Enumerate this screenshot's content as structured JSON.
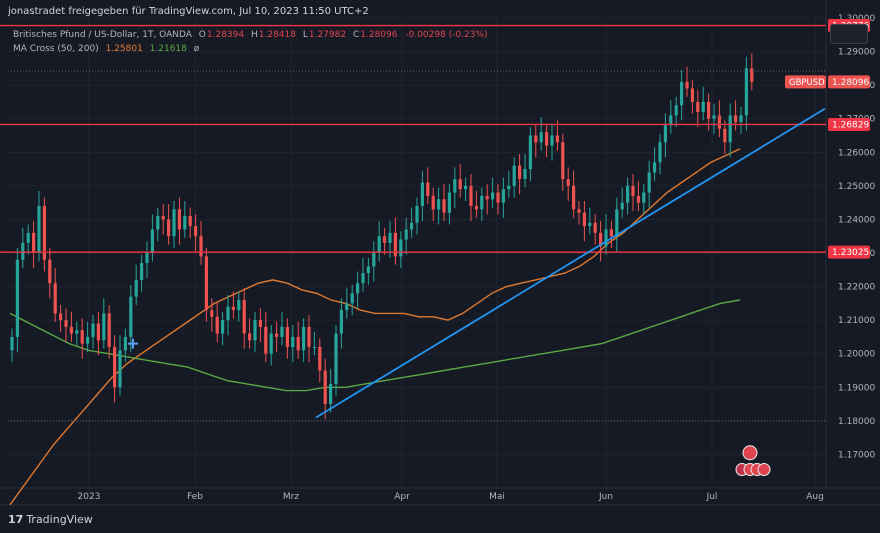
{
  "header": {
    "author": "jonastradet freigegeben für TradingView.com, Jul 10, 2023 11:50 UTC+2"
  },
  "legend": {
    "symbol": "Britisches Pfund / US-Dollar, 1T, OANDA",
    "open_label": "O",
    "open": "1.28394",
    "high_label": "H",
    "high": "1.28418",
    "low_label": "L",
    "low": "1.27982",
    "close_label": "C",
    "close": "1.28096",
    "change": "-0.00298 (-0.23%)",
    "ma_label": "MA Cross (50, 200)",
    "ma_fast": "1.25801",
    "ma_slow": "1.21618",
    "ma_glyph": "ø"
  },
  "footer": {
    "brand": "TradingView",
    "logo": "17"
  },
  "colors": {
    "background": "#161a25",
    "up": "#26a69a",
    "down": "#ef5350",
    "horizontal_line": "#f23645",
    "trendline": "#2196f3",
    "ma_fast": "#e07a2e",
    "ma_slow": "#5aa846"
  },
  "chart_data": {
    "type": "candlestick",
    "symbol": "GBPUSD",
    "y_ticks": [
      1.17,
      1.18,
      1.19,
      1.2,
      1.21,
      1.22,
      1.23,
      1.24,
      1.25,
      1.26,
      1.27,
      1.28,
      1.29,
      1.3
    ],
    "ylim": [
      1.16,
      1.3
    ],
    "x_tick_labels": [
      "2023",
      "Feb",
      "Mrz",
      "Apr",
      "Mai",
      "Jun",
      "Jul",
      "Aug"
    ],
    "price_tag_label": "GBPUSD",
    "last_price": 1.28096,
    "horizontal_levels": [
      1.29776,
      1.26829,
      1.23025
    ],
    "horizontal_level_labels": [
      "1.29776",
      "1.26829",
      "1.23025"
    ],
    "dotted_levels": [
      1.28418,
      1.18
    ],
    "trendline": {
      "from": [
        "Mrz",
        1.181
      ],
      "to": [
        "Aug",
        1.273
      ]
    },
    "closes": [
      1.205,
      1.228,
      1.233,
      1.236,
      1.23,
      1.244,
      1.228,
      1.221,
      1.212,
      1.21,
      1.208,
      1.206,
      1.207,
      1.203,
      1.205,
      1.209,
      1.204,
      1.212,
      1.202,
      1.19,
      1.201,
      1.205,
      1.217,
      1.222,
      1.227,
      1.23,
      1.237,
      1.241,
      1.24,
      1.235,
      1.243,
      1.237,
      1.241,
      1.238,
      1.235,
      1.229,
      1.213,
      1.211,
      1.206,
      1.21,
      1.214,
      1.213,
      1.216,
      1.206,
      1.204,
      1.21,
      1.208,
      1.2,
      1.206,
      1.205,
      1.208,
      1.202,
      1.205,
      1.201,
      1.208,
      1.202,
      1.202,
      1.195,
      1.185,
      1.191,
      1.206,
      1.213,
      1.215,
      1.218,
      1.221,
      1.224,
      1.226,
      1.23,
      1.235,
      1.233,
      1.236,
      1.229,
      1.234,
      1.237,
      1.239,
      1.244,
      1.251,
      1.247,
      1.243,
      1.246,
      1.242,
      1.248,
      1.252,
      1.249,
      1.25,
      1.244,
      1.243,
      1.247,
      1.246,
      1.248,
      1.245,
      1.249,
      1.25,
      1.256,
      1.252,
      1.255,
      1.265,
      1.263,
      1.266,
      1.262,
      1.265,
      1.263,
      1.252,
      1.25,
      1.243,
      1.242,
      1.238,
      1.239,
      1.236,
      1.232,
      1.237,
      1.235,
      1.243,
      1.245,
      1.25,
      1.247,
      1.245,
      1.248,
      1.254,
      1.257,
      1.263,
      1.268,
      1.271,
      1.274,
      1.281,
      1.279,
      1.275,
      1.272,
      1.275,
      1.27,
      1.271,
      1.267,
      1.263,
      1.271,
      1.269,
      1.271,
      1.285,
      1.281
    ],
    "ma_fast": [
      1.155,
      1.161,
      1.167,
      1.173,
      1.178,
      1.183,
      1.188,
      1.193,
      1.197,
      1.2,
      1.203,
      1.206,
      1.209,
      1.212,
      1.215,
      1.217,
      1.219,
      1.221,
      1.222,
      1.221,
      1.219,
      1.218,
      1.216,
      1.215,
      1.213,
      1.212,
      1.212,
      1.212,
      1.211,
      1.211,
      1.21,
      1.212,
      1.215,
      1.218,
      1.22,
      1.221,
      1.222,
      1.223,
      1.224,
      1.226,
      1.229,
      1.233,
      1.236,
      1.24,
      1.244,
      1.248,
      1.251,
      1.254,
      1.257,
      1.259,
      1.261
    ],
    "ma_slow": [
      1.212,
      1.209,
      1.206,
      1.203,
      1.201,
      1.2,
      1.199,
      1.198,
      1.197,
      1.196,
      1.194,
      1.192,
      1.191,
      1.19,
      1.189,
      1.189,
      1.19,
      1.19,
      1.191,
      1.192,
      1.193,
      1.194,
      1.195,
      1.196,
      1.197,
      1.198,
      1.199,
      1.2,
      1.201,
      1.202,
      1.203,
      1.205,
      1.207,
      1.209,
      1.211,
      1.213,
      1.215,
      1.216
    ]
  }
}
